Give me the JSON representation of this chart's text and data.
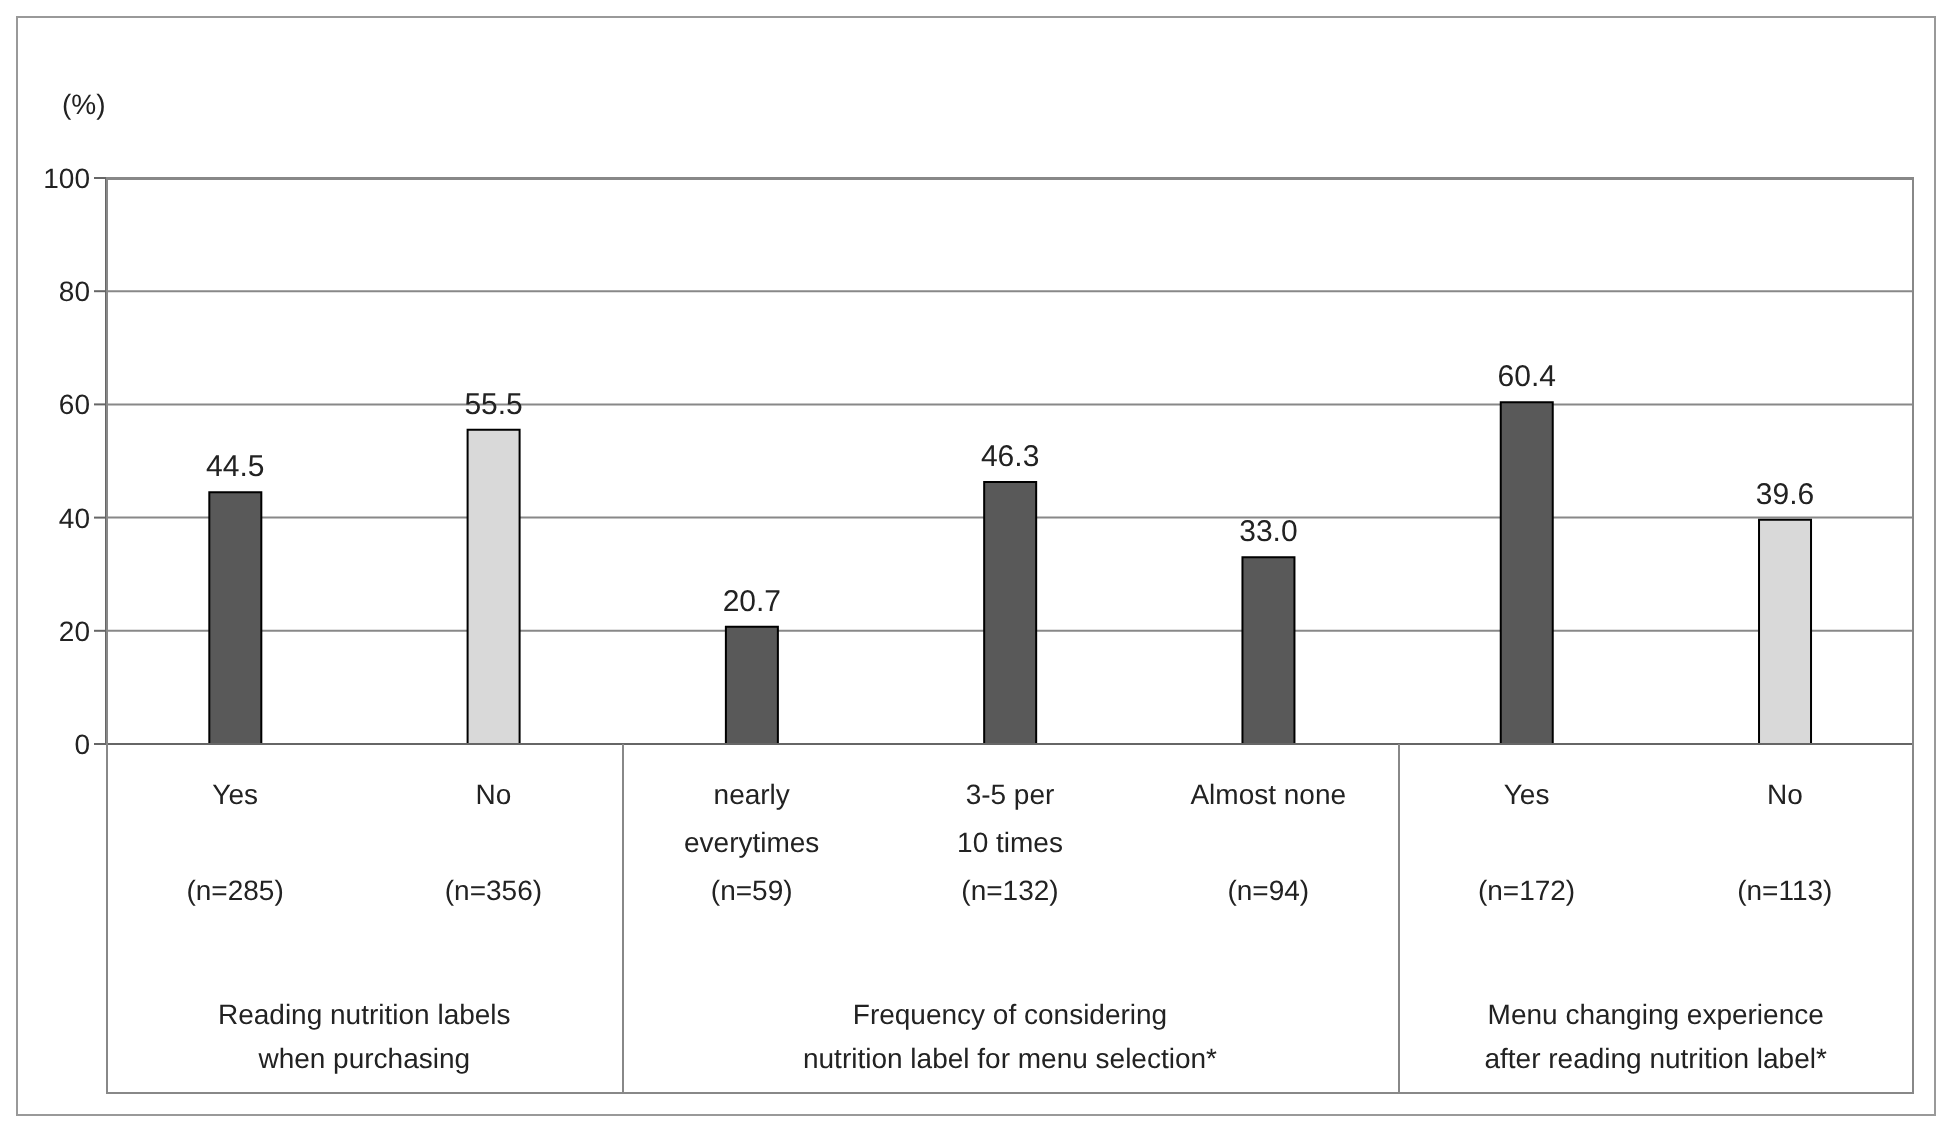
{
  "chart_data": {
    "type": "bar",
    "ylabel": "(%)",
    "categories": [
      "Yes\n\n(n=285)",
      "No\n\n(n=356)",
      "nearly\neverytimes\n(n=59)",
      "3-5 per\n10 times\n(n=132)",
      "Almost none\n\n(n=94)",
      "Yes\n\n(n=172)",
      "No\n\n(n=113)"
    ],
    "values": [
      44.5,
      55.5,
      20.7,
      46.3,
      33.0,
      60.4,
      39.6
    ],
    "colors": [
      "#595959",
      "#d9d9d9",
      "#595959",
      "#595959",
      "#595959",
      "#595959",
      "#d9d9d9"
    ],
    "value_labels": [
      "44.5",
      "55.5",
      "20.7",
      "46.3",
      "33.0",
      "60.4",
      "39.6"
    ],
    "ylim": [
      0,
      100
    ],
    "yticks": [
      0,
      20,
      40,
      60,
      80,
      100
    ],
    "grid": "y",
    "annotations": [
      "Reading nutrition labels\nwhen purchasing",
      "Frequency of considering\nnutrition label for menu selection*",
      "Menu changing experience\nafter reading nutrition label*"
    ]
  }
}
